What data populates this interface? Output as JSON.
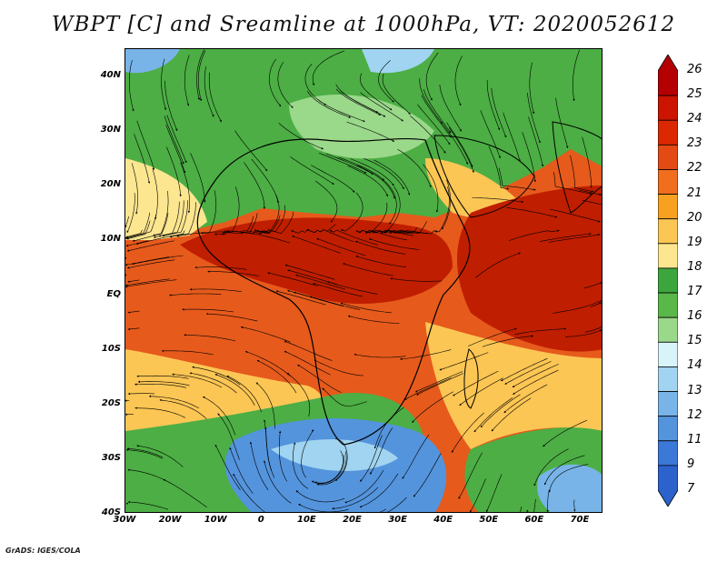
{
  "title": "WBPT [C] and Sreamline at 1000hPa, VT: 2020052612",
  "credit": "GrADS: IGES/COLA",
  "lat_labels": [
    "40N",
    "30N",
    "20N",
    "10N",
    "EQ",
    "10S",
    "20S",
    "30S",
    "40S"
  ],
  "lat_values": [
    40,
    30,
    20,
    10,
    0,
    -10,
    -20,
    -30,
    -40
  ],
  "lon_labels": [
    "30W",
    "20W",
    "10W",
    "0",
    "10E",
    "20E",
    "30E",
    "40E",
    "50E",
    "60E",
    "70E"
  ],
  "lon_values": [
    -30,
    -20,
    -10,
    0,
    10,
    20,
    30,
    40,
    50,
    60,
    70
  ],
  "extent": {
    "lon_min": -30,
    "lon_max": 75,
    "lat_min": -40,
    "lat_max": 45
  },
  "colorbar": {
    "labels": [
      "26",
      "25",
      "24",
      "23",
      "22",
      "21",
      "20",
      "19",
      "18",
      "17",
      "16",
      "15",
      "14",
      "13",
      "12",
      "11",
      "9",
      "7"
    ],
    "colors": [
      "#b40000",
      "#cc1400",
      "#dc2800",
      "#e44a14",
      "#f06e1e",
      "#f8a020",
      "#fcc654",
      "#fce690",
      "#3ca63c",
      "#5ab84a",
      "#9ad88a",
      "#d8f4f8",
      "#a0d4f0",
      "#78b4e8",
      "#5494dc",
      "#3c78d8",
      "#2c62cc"
    ]
  }
}
